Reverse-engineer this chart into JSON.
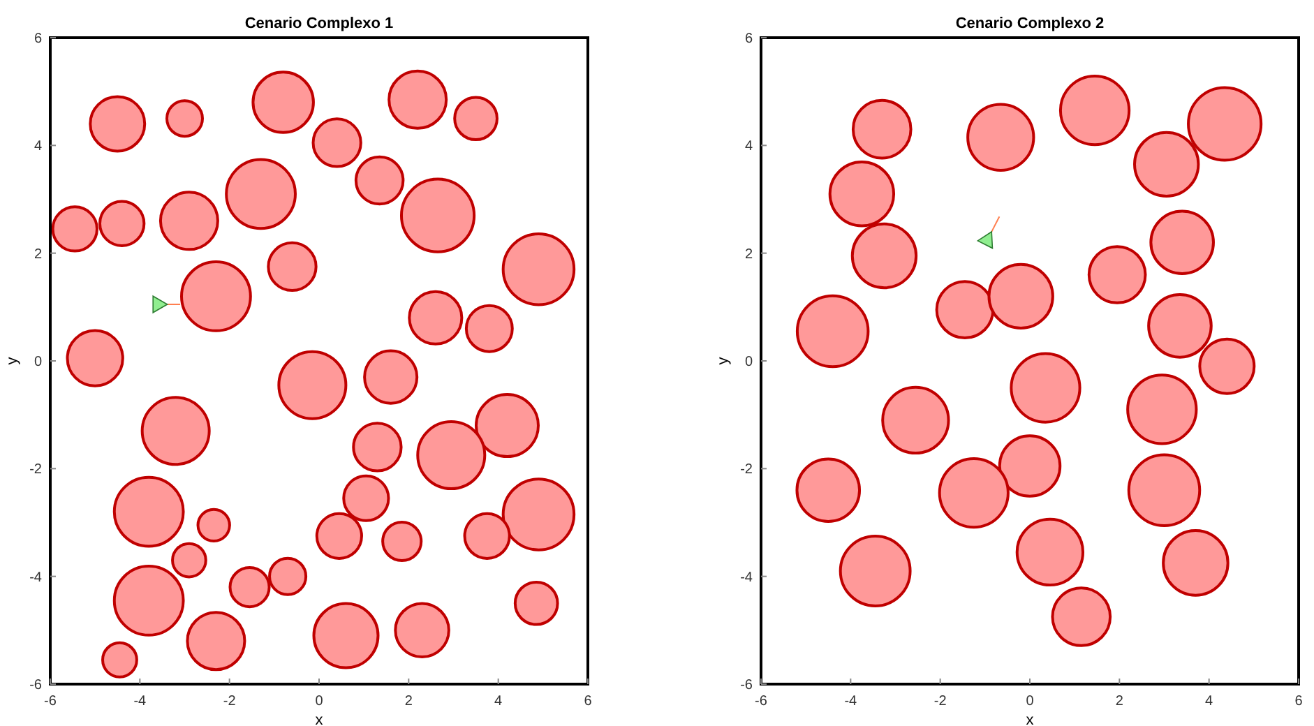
{
  "chart_data": [
    {
      "type": "bubble",
      "title": "Cenario Complexo 1",
      "xlabel": "x",
      "ylabel": "y",
      "xlim": [
        -6,
        6
      ],
      "ylim": [
        -6,
        6
      ],
      "xticks": [
        -6,
        -4,
        -2,
        0,
        2,
        4,
        6
      ],
      "yticks": [
        -6,
        -4,
        -2,
        0,
        2,
        4,
        6
      ],
      "series": [
        {
          "color": "#ff9999",
          "x": [
            -4.5,
            -3.0,
            -0.8,
            0.4,
            2.2,
            3.5,
            -5.45,
            -4.4,
            -2.9,
            -1.3,
            1.35,
            2.65,
            -0.6,
            4.9,
            -2.3,
            2.6,
            3.8,
            -5.0,
            -0.15,
            1.6,
            -3.2,
            4.2,
            1.3,
            2.95,
            1.05,
            -3.8,
            -2.35,
            4.9,
            0.45,
            1.85,
            3.75,
            -2.9,
            -1.55,
            -0.7,
            -3.8,
            4.85,
            -2.3,
            0.6,
            2.3,
            -4.45
          ],
          "values": [
            4.4,
            4.5,
            4.8,
            4.05,
            4.85,
            4.5,
            2.45,
            2.55,
            2.6,
            3.1,
            3.35,
            2.7,
            1.75,
            1.7,
            1.2,
            0.8,
            0.6,
            0.05,
            -0.45,
            -0.3,
            -1.3,
            -1.2,
            -1.6,
            -1.75,
            -2.55,
            -2.8,
            -3.05,
            -2.85,
            -3.25,
            -3.35,
            -3.25,
            -3.7,
            -4.2,
            -4.0,
            -4.45,
            -4.5,
            -5.2,
            -5.1,
            -5.0,
            -5.55
          ],
          "sizes": [
            0.56,
            0.24,
            0.69,
            0.43,
            0.62,
            0.34,
            0.37,
            0.37,
            0.62,
            0.9,
            0.42,
            1,
            0.43,
            0.95,
            0.9,
            0.52,
            0.4,
            0.58,
            0.85,
            0.52,
            0.85,
            0.73,
            0.43,
            0.85,
            0.38,
            0.9,
            0.19,
            0.95,
            0.38,
            0.28,
            0.38,
            0.21,
            0.29,
            0.25,
            0.9,
            0.34,
            0.62,
            0.78,
            0.54,
            0.22
          ]
        },
        {
          "type": "line",
          "color": "#ff7f50",
          "x": [
            -3.6,
            -3.1
          ],
          "values": [
            1.05,
            1.05
          ]
        },
        {
          "type": "scatter",
          "marker": "triangle",
          "color": "#90ee90",
          "x": [
            -3.6
          ],
          "values": [
            1.05
          ]
        }
      ]
    },
    {
      "type": "bubble",
      "title": "Cenario Complexo 2",
      "xlabel": "x",
      "ylabel": "y",
      "xlim": [
        -6,
        6
      ],
      "ylim": [
        -6,
        6
      ],
      "xticks": [
        -6,
        -4,
        -2,
        0,
        2,
        4,
        6
      ],
      "yticks": [
        -6,
        -4,
        -2,
        0,
        2,
        4,
        6
      ],
      "series": [
        {
          "color": "#ff9999",
          "x": [
            -3.3,
            -0.65,
            1.45,
            3.05,
            4.35,
            -3.75,
            -3.25,
            3.4,
            1.95,
            -1.45,
            -0.2,
            -4.4,
            3.35,
            4.4,
            0.35,
            -2.55,
            2.95,
            0.0,
            -1.25,
            3.0,
            -4.5,
            0.45,
            3.7,
            -3.45,
            1.15
          ],
          "values": [
            4.3,
            4.15,
            4.65,
            3.65,
            4.4,
            3.1,
            1.95,
            2.2,
            1.6,
            0.95,
            1.2,
            0.55,
            0.65,
            -0.1,
            -0.5,
            -1.1,
            -0.9,
            -1.95,
            -2.45,
            -2.4,
            -2.4,
            -3.55,
            -3.75,
            -3.9,
            -4.75
          ],
          "sizes": [
            0.63,
            0.82,
            0.89,
            0.77,
            1,
            0.77,
            0.77,
            0.74,
            0.6,
            0.6,
            0.77,
            0.95,
            0.74,
            0.56,
            0.89,
            0.82,
            0.89,
            0.69,
            0.89,
            0.95,
            0.74,
            0.82,
            0.79,
            0.92,
            0.63
          ]
        },
        {
          "type": "line",
          "color": "#ff7f50",
          "x": [
            -0.95,
            -0.68
          ],
          "values": [
            2.24,
            2.68
          ]
        },
        {
          "type": "scatter",
          "marker": "triangle",
          "color": "#90ee90",
          "x": [
            -0.95
          ],
          "values": [
            2.24
          ]
        }
      ]
    }
  ]
}
